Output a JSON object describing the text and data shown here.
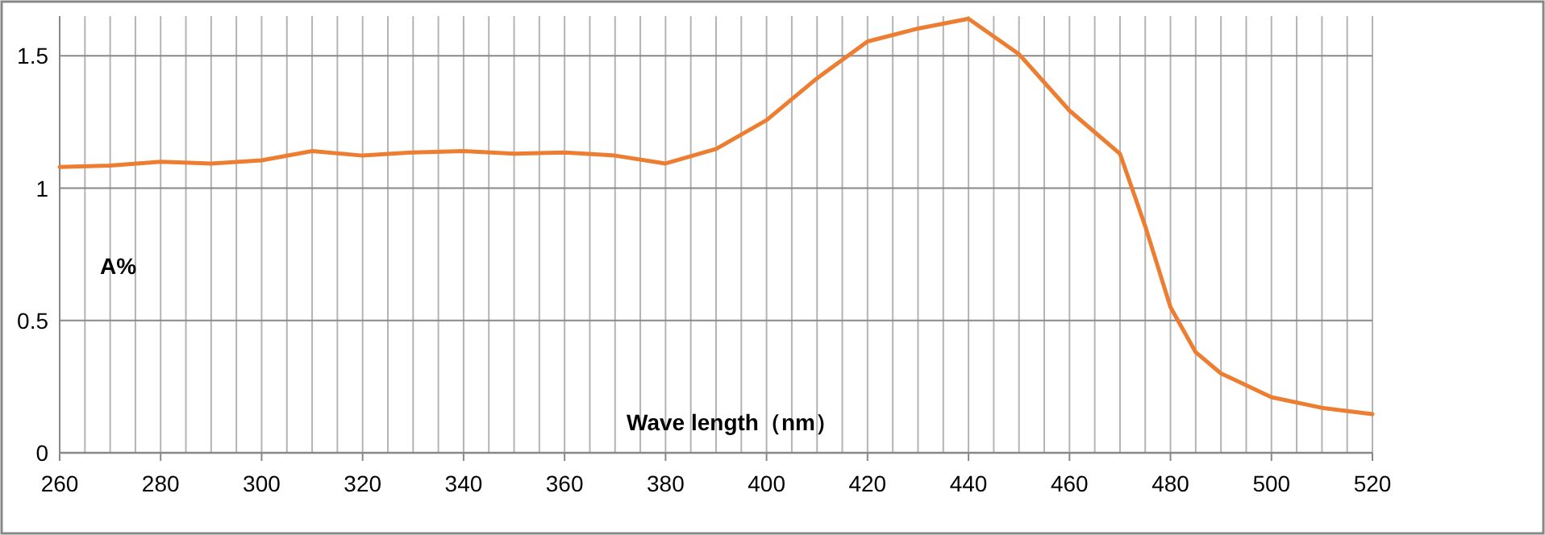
{
  "chart_data": {
    "type": "line",
    "xlabel": "Wave length（nm）",
    "ylabel": "A%",
    "x": [
      260,
      270,
      280,
      290,
      300,
      310,
      320,
      330,
      340,
      350,
      360,
      370,
      380,
      390,
      400,
      410,
      420,
      430,
      440,
      450,
      460,
      470,
      475,
      480,
      485,
      490,
      500,
      510,
      520
    ],
    "series": [
      {
        "color": "#ed7d31",
        "values": [
          1.08,
          1.085,
          1.1,
          1.093,
          1.105,
          1.14,
          1.123,
          1.135,
          1.14,
          1.13,
          1.135,
          1.123,
          1.093,
          1.148,
          1.257,
          1.415,
          1.554,
          1.603,
          1.64,
          1.506,
          1.293,
          1.13,
          0.856,
          0.55,
          0.38,
          0.3,
          0.21,
          0.17,
          0.146
        ]
      }
    ],
    "xlim": [
      260,
      520
    ],
    "ylim": [
      0,
      1.65
    ],
    "xticks": [
      260,
      {
        "value": 265,
        "label": null
      },
      {
        "value": 270,
        "label": null
      },
      {
        "value": 275,
        "label": null
      },
      280,
      {
        "value": 285,
        "label": null
      },
      {
        "value": 290,
        "label": null
      },
      {
        "value": 295,
        "label": null
      },
      300,
      {
        "value": 305,
        "label": null
      },
      {
        "value": 310,
        "label": null
      },
      {
        "value": 315,
        "label": null
      },
      320,
      {
        "value": 325,
        "label": null
      },
      {
        "value": 330,
        "label": null
      },
      {
        "value": 335,
        "label": null
      },
      340,
      {
        "value": 345,
        "label": null
      },
      {
        "value": 350,
        "label": null
      },
      {
        "value": 355,
        "label": null
      },
      360,
      {
        "value": 365,
        "label": null
      },
      {
        "value": 370,
        "label": null
      },
      {
        "value": 375,
        "label": null
      },
      380,
      {
        "value": 385,
        "label": null
      },
      {
        "value": 390,
        "label": null
      },
      {
        "value": 395,
        "label": null
      },
      400,
      {
        "value": 405,
        "label": null
      },
      {
        "value": 410,
        "label": null
      },
      {
        "value": 415,
        "label": null
      },
      420,
      {
        "value": 425,
        "label": null
      },
      {
        "value": 430,
        "label": null
      },
      {
        "value": 435,
        "label": null
      },
      440,
      {
        "value": 445,
        "label": null
      },
      {
        "value": 450,
        "label": null
      },
      {
        "value": 455,
        "label": null
      },
      460,
      {
        "value": 465,
        "label": null
      },
      {
        "value": 470,
        "label": null
      },
      {
        "value": 475,
        "label": null
      },
      480,
      {
        "value": 485,
        "label": null
      },
      {
        "value": 490,
        "label": null
      },
      {
        "value": 495,
        "label": null
      },
      500,
      {
        "value": 505,
        "label": null
      },
      {
        "value": 510,
        "label": null
      },
      {
        "value": 515,
        "label": null
      },
      520
    ],
    "yticks": [
      0,
      0.5,
      1,
      1.5
    ],
    "grid": true
  }
}
